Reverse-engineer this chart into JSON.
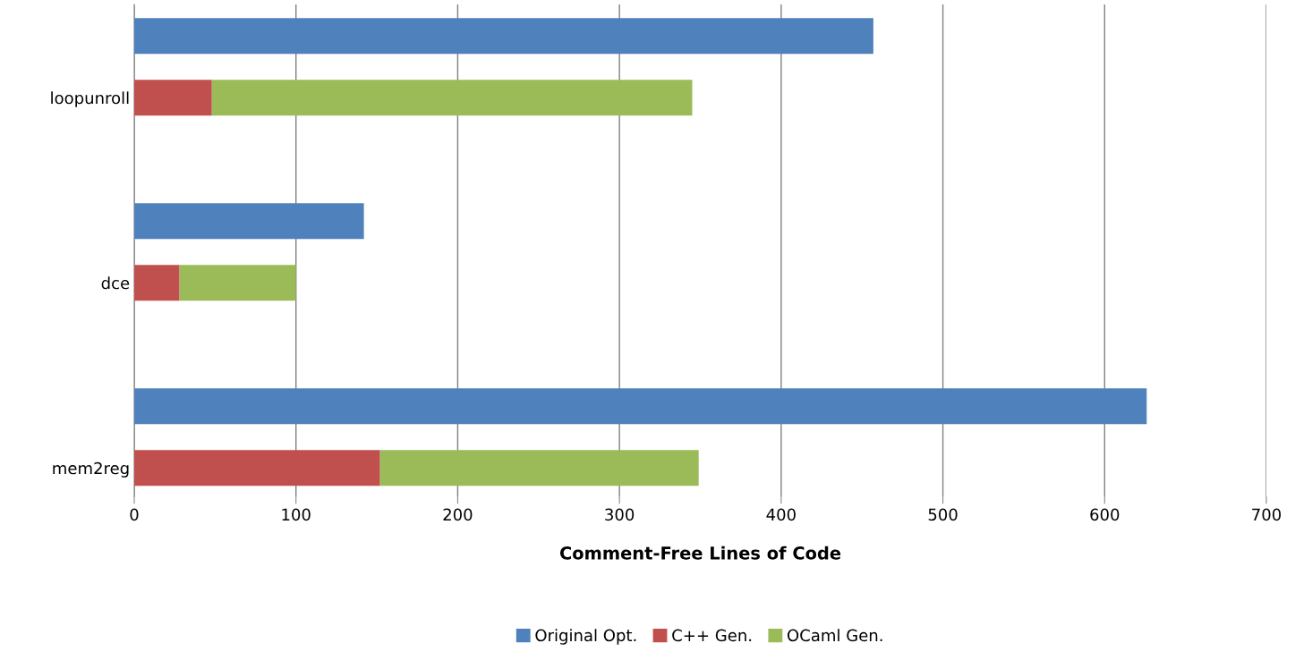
{
  "chart_data": {
    "type": "bar",
    "orientation": "horizontal",
    "stacked": true,
    "categories": [
      null,
      "loopunroll",
      null,
      "dce",
      null,
      "mem2reg"
    ],
    "series": [
      {
        "name": "Original Opt.",
        "color": "#4f81bd",
        "values": [
          457,
          null,
          142,
          null,
          626,
          null
        ]
      },
      {
        "name": "C++ Gen.",
        "color": "#c0504d",
        "values": [
          null,
          48,
          null,
          28,
          null,
          152
        ]
      },
      {
        "name": "OCaml Gen.",
        "color": "#9bbb59",
        "values": [
          null,
          297,
          null,
          72,
          null,
          197
        ]
      }
    ],
    "xlabel": "Comment-Free Lines of Code",
    "xlim": [
      0,
      700
    ],
    "xticks": [
      0,
      100,
      200,
      300,
      400,
      500,
      600,
      700
    ],
    "grid": "x",
    "legend": "bottom"
  }
}
